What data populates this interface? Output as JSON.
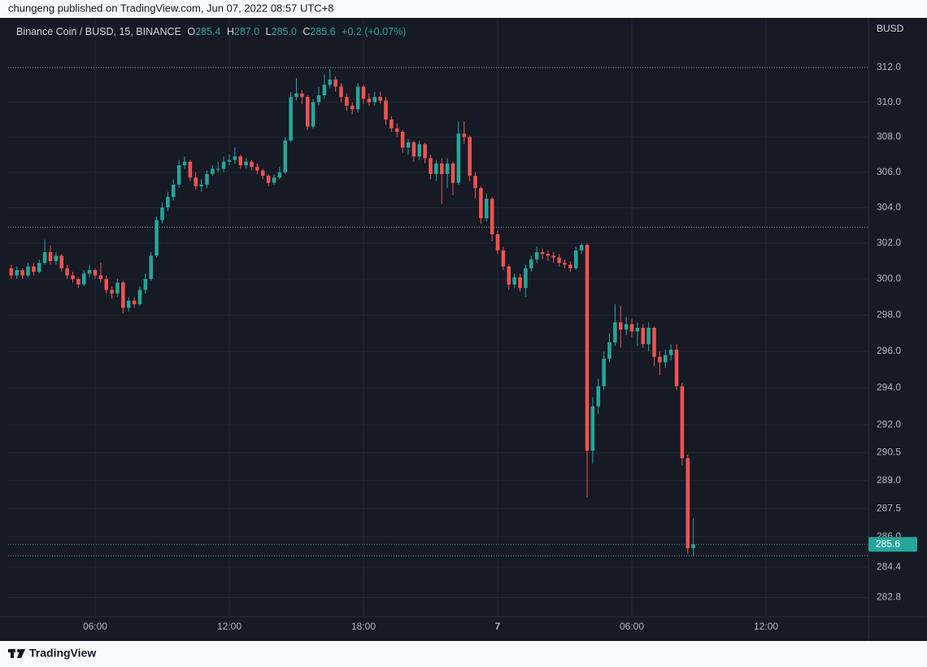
{
  "header": {
    "attribution": "chungeng published on TradingView.com, Jun 07, 2022 08:57 UTC+8"
  },
  "chart_data": {
    "type": "candlestick",
    "symbol": "Binance Coin / BUSD, 15, BINANCE",
    "legend": [
      {
        "key": "O",
        "value": "285.4"
      },
      {
        "key": "H",
        "value": "287.0"
      },
      {
        "key": "L",
        "value": "285.0"
      },
      {
        "key": "C",
        "value": "285.6"
      }
    ],
    "change": "+0.2 (+0.07%)",
    "currency": "BUSD",
    "up_color": "#26a69a",
    "down_color": "#ef5350",
    "log_scale": true,
    "grid": true,
    "xlim": [
      2.11,
      40.58
    ],
    "xticks": [
      {
        "value": 6,
        "label": "06:00"
      },
      {
        "value": 12,
        "label": "12:00"
      },
      {
        "value": 18,
        "label": "18:00"
      },
      {
        "value": 24,
        "label": "7"
      },
      {
        "value": 30,
        "label": "06:00"
      },
      {
        "value": 36,
        "label": "12:00"
      }
    ],
    "ylim": [
      281.8,
      314.6
    ],
    "yticks": [
      {
        "value": 312,
        "label": "312.0"
      },
      {
        "value": 310,
        "label": "310.0"
      },
      {
        "value": 308,
        "label": "308.0"
      },
      {
        "value": 306,
        "label": "306.0"
      },
      {
        "value": 304,
        "label": "304.0"
      },
      {
        "value": 302,
        "label": "302.0"
      },
      {
        "value": 300,
        "label": "300.0"
      },
      {
        "value": 298,
        "label": "298.0"
      },
      {
        "value": 296,
        "label": "296.0"
      },
      {
        "value": 294,
        "label": "294.0"
      },
      {
        "value": 292,
        "label": "292.0"
      },
      290.5,
      {
        "value": 289,
        "label": "289.0"
      },
      287.5,
      {
        "value": 286,
        "label": "286.0"
      },
      284.4,
      282.8
    ],
    "last_price": 285.6,
    "horizontal_lines": [
      312.0,
      302.9,
      285.0
    ],
    "x": [
      2.25,
      2.5,
      2.75,
      3,
      3.25,
      3.5,
      3.75,
      4,
      4.25,
      4.5,
      4.75,
      5,
      5.25,
      5.5,
      5.75,
      6,
      6.25,
      6.5,
      6.75,
      7,
      7.25,
      7.5,
      7.75,
      8,
      8.25,
      8.5,
      8.75,
      9,
      9.25,
      9.5,
      9.75,
      10,
      10.25,
      10.5,
      10.75,
      11,
      11.25,
      11.5,
      11.75,
      12,
      12.25,
      12.5,
      12.75,
      13,
      13.25,
      13.5,
      13.75,
      14,
      14.25,
      14.5,
      14.75,
      15,
      15.25,
      15.5,
      15.75,
      16,
      16.25,
      16.5,
      16.75,
      17,
      17.25,
      17.5,
      17.75,
      18,
      18.25,
      18.5,
      18.75,
      19,
      19.25,
      19.5,
      19.75,
      20,
      20.25,
      20.5,
      20.75,
      21,
      21.25,
      21.5,
      21.75,
      22,
      22.25,
      22.5,
      22.75,
      23,
      23.25,
      23.5,
      23.75,
      24,
      24.25,
      24.5,
      24.75,
      25,
      25.25,
      25.5,
      25.75,
      26,
      26.25,
      26.5,
      26.75,
      27,
      27.25,
      27.5,
      27.75,
      28,
      28.25,
      28.5,
      28.75,
      29,
      29.25,
      29.5,
      29.75,
      30,
      30.25,
      30.5,
      30.75,
      31,
      31.25,
      31.5,
      31.75,
      32,
      32.25,
      32.5,
      32.75
    ],
    "open": [
      300.6,
      300.2,
      300.5,
      300.2,
      300.7,
      300.4,
      300.9,
      301.5,
      301.0,
      301.3,
      300.6,
      300.2,
      300.0,
      299.7,
      300.3,
      300.5,
      300.2,
      300.0,
      299.4,
      299.2,
      299.8,
      298.4,
      298.8,
      298.6,
      299.4,
      300.0,
      301.3,
      303.3,
      304.0,
      304.6,
      305.3,
      306.4,
      306.6,
      305.7,
      305.2,
      305.3,
      305.9,
      306.2,
      306.2,
      306.6,
      306.7,
      306.9,
      306.4,
      306.6,
      306.3,
      306.1,
      305.8,
      305.4,
      305.7,
      306.0,
      307.8,
      310.3,
      310.5,
      310.3,
      308.6,
      310.0,
      310.4,
      311.0,
      311.3,
      310.9,
      310.3,
      309.8,
      309.6,
      310.9,
      310.2,
      310.0,
      310.3,
      310.1,
      309.0,
      308.5,
      308.3,
      307.4,
      307.7,
      306.9,
      307.6,
      306.8,
      305.9,
      306.5,
      305.9,
      306.5,
      305.4,
      308.2,
      308.0,
      305.8,
      305.1,
      303.4,
      304.5,
      302.5,
      301.6,
      300.7,
      299.7,
      300.1,
      299.5,
      300.6,
      301.1,
      301.5,
      301.4,
      301.3,
      301.2,
      300.9,
      300.8,
      300.6,
      301.6,
      301.9,
      290.6,
      293.0,
      294.1,
      295.6,
      296.5,
      297.6,
      297.2,
      297.5,
      297.1,
      297.3,
      296.4,
      297.3,
      295.7,
      295.4,
      295.8,
      296.1,
      294.1,
      290.2,
      285.4
    ],
    "high": [
      300.8,
      300.7,
      300.6,
      300.9,
      300.9,
      301.1,
      302.2,
      301.9,
      301.5,
      301.4,
      300.8,
      300.4,
      300.1,
      300.5,
      300.8,
      300.6,
      300.9,
      300.2,
      299.6,
      300.0,
      299.9,
      299.0,
      299.0,
      299.6,
      300.3,
      301.5,
      303.5,
      304.3,
      304.9,
      305.6,
      306.7,
      306.9,
      306.7,
      306.0,
      305.6,
      306.1,
      306.4,
      306.6,
      306.9,
      307.0,
      307.4,
      307.0,
      306.8,
      306.7,
      306.5,
      306.2,
      305.9,
      305.9,
      306.3,
      308.0,
      310.6,
      311.4,
      310.7,
      310.4,
      310.2,
      310.9,
      311.6,
      311.9,
      311.5,
      311.1,
      310.5,
      310.0,
      311.1,
      311.0,
      310.5,
      310.6,
      310.6,
      310.3,
      309.2,
      308.8,
      308.4,
      307.9,
      307.8,
      307.8,
      307.7,
      307.0,
      306.7,
      306.8,
      306.8,
      306.6,
      308.9,
      308.9,
      308.1,
      306.0,
      305.2,
      304.8,
      304.6,
      302.7,
      301.8,
      300.8,
      300.3,
      300.3,
      300.8,
      301.3,
      301.8,
      301.7,
      301.6,
      301.5,
      301.4,
      301.1,
      301.0,
      301.8,
      302.0,
      302.0,
      293.5,
      294.5,
      296.0,
      297.0,
      298.6,
      298.5,
      297.9,
      297.8,
      297.6,
      297.5,
      297.6,
      297.4,
      296.0,
      296.1,
      296.4,
      296.4,
      294.3,
      290.4,
      287.0
    ],
    "low": [
      300.0,
      300.0,
      300.0,
      300.1,
      300.2,
      300.3,
      300.8,
      300.8,
      300.8,
      300.4,
      300.0,
      299.8,
      299.5,
      299.6,
      300.1,
      300.0,
      299.8,
      299.2,
      298.9,
      299.0,
      298.1,
      298.2,
      298.4,
      298.5,
      299.2,
      299.9,
      301.2,
      303.1,
      303.8,
      304.4,
      305.1,
      306.2,
      305.5,
      305.0,
      304.9,
      305.1,
      305.8,
      306.0,
      306.0,
      306.4,
      306.5,
      306.2,
      306.2,
      306.1,
      305.9,
      305.6,
      305.2,
      305.3,
      305.6,
      305.9,
      307.7,
      310.1,
      309.9,
      308.4,
      308.5,
      309.8,
      310.2,
      310.8,
      310.6,
      310.0,
      309.5,
      309.3,
      309.4,
      309.9,
      309.8,
      309.8,
      309.9,
      308.7,
      308.3,
      308.0,
      307.1,
      307.0,
      306.6,
      306.7,
      306.5,
      305.6,
      305.5,
      304.2,
      305.1,
      304.7,
      305.3,
      307.6,
      305.5,
      304.5,
      303.1,
      303.2,
      302.1,
      301.4,
      300.5,
      299.4,
      299.5,
      299.3,
      299.0,
      300.4,
      300.9,
      301.1,
      301.0,
      300.9,
      300.7,
      300.6,
      300.4,
      300.5,
      301.4,
      288.1,
      289.9,
      292.6,
      293.9,
      295.4,
      296.3,
      296.2,
      296.9,
      296.8,
      296.3,
      296.2,
      296.0,
      295.2,
      294.7,
      295.1,
      295.5,
      293.9,
      289.8,
      285.1,
      285.0
    ],
    "close": [
      300.2,
      300.5,
      300.2,
      300.7,
      300.4,
      300.9,
      301.5,
      301.0,
      301.3,
      300.6,
      300.2,
      300.0,
      299.7,
      300.3,
      300.5,
      300.2,
      300.0,
      299.4,
      299.2,
      299.8,
      298.4,
      298.8,
      298.6,
      299.4,
      300.0,
      301.3,
      303.3,
      304.0,
      304.6,
      305.3,
      306.4,
      306.6,
      305.7,
      305.2,
      305.3,
      305.9,
      306.2,
      306.2,
      306.6,
      306.7,
      306.9,
      306.4,
      306.6,
      306.3,
      306.1,
      305.8,
      305.4,
      305.7,
      306.0,
      307.8,
      310.3,
      310.5,
      310.3,
      308.6,
      310.0,
      310.4,
      311.0,
      311.3,
      310.9,
      310.3,
      309.8,
      309.6,
      310.9,
      310.2,
      310.0,
      310.3,
      310.1,
      309.0,
      308.5,
      308.3,
      307.4,
      307.7,
      306.9,
      307.6,
      306.8,
      305.9,
      306.5,
      305.9,
      306.5,
      305.4,
      308.2,
      308.0,
      305.8,
      305.1,
      303.4,
      304.5,
      302.5,
      301.6,
      300.7,
      299.7,
      300.1,
      299.5,
      300.6,
      301.1,
      301.5,
      301.4,
      301.3,
      301.2,
      300.9,
      300.8,
      300.6,
      301.6,
      301.9,
      290.6,
      293.0,
      294.1,
      295.6,
      296.5,
      297.6,
      297.2,
      297.5,
      297.1,
      297.3,
      296.4,
      297.3,
      295.7,
      295.4,
      295.8,
      296.1,
      294.1,
      290.2,
      285.4,
      285.6
    ]
  },
  "footer": {
    "brand": "TradingView"
  }
}
